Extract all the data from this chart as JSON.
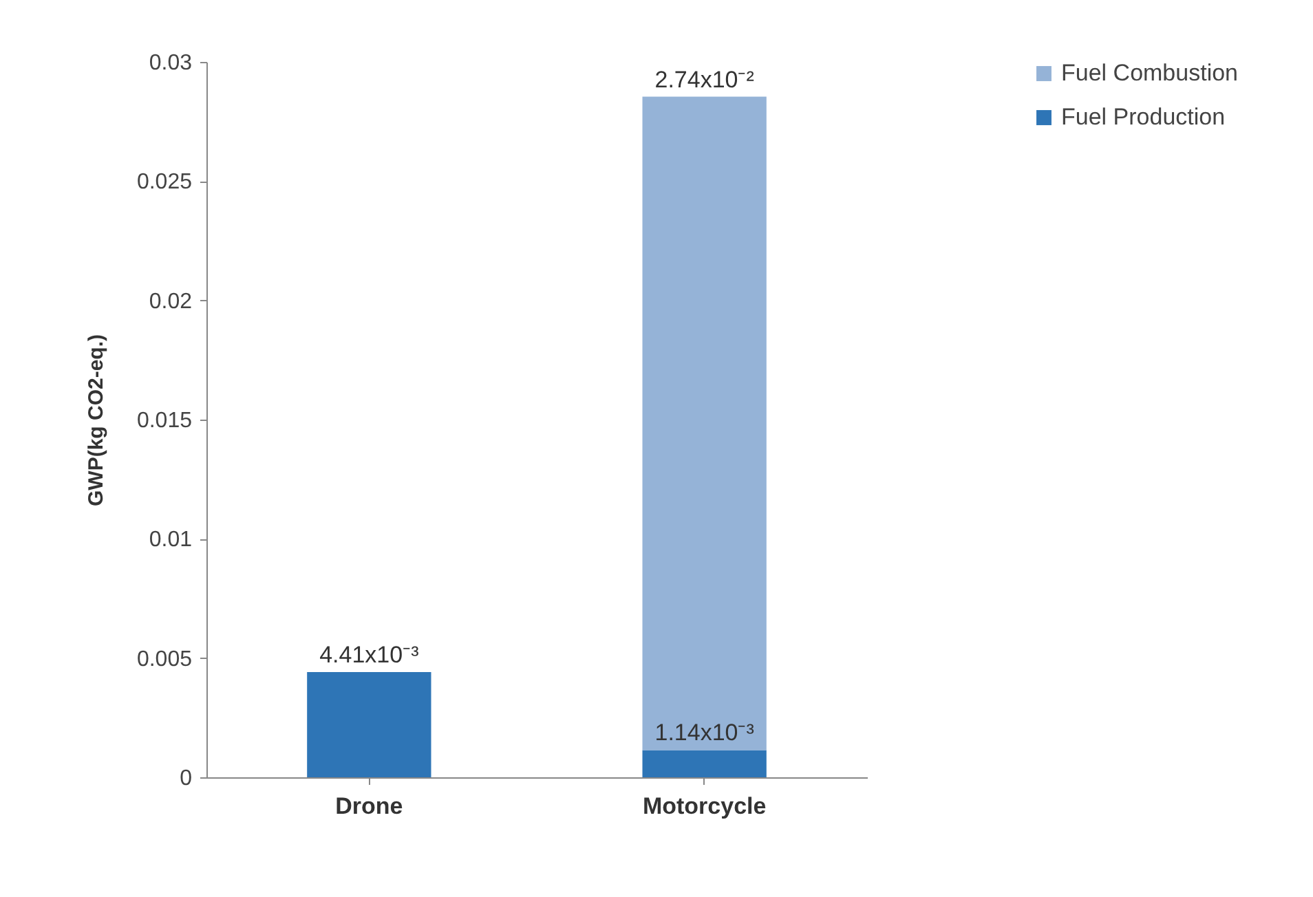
{
  "chart_data": {
    "type": "bar",
    "stacked": true,
    "ylabel": "GWP(kg CO2-eq.)",
    "categories": [
      "Drone",
      "Motorcycle"
    ],
    "series": [
      {
        "name": "Fuel Production",
        "color": "#2e75b6",
        "values": [
          0.00441,
          0.00114
        ],
        "value_labels": [
          "4.41x10⁻³",
          "1.14x10⁻³"
        ]
      },
      {
        "name": "Fuel Combustion",
        "color": "#95b3d7",
        "values": [
          null,
          0.0274
        ],
        "value_labels": [
          null,
          "2.74x10⁻²"
        ]
      }
    ],
    "ylim": [
      0,
      0.03
    ],
    "yticks": [
      0,
      0.005,
      0.01,
      0.015,
      0.02,
      0.025,
      0.03
    ],
    "grid": false,
    "legend": "right"
  }
}
